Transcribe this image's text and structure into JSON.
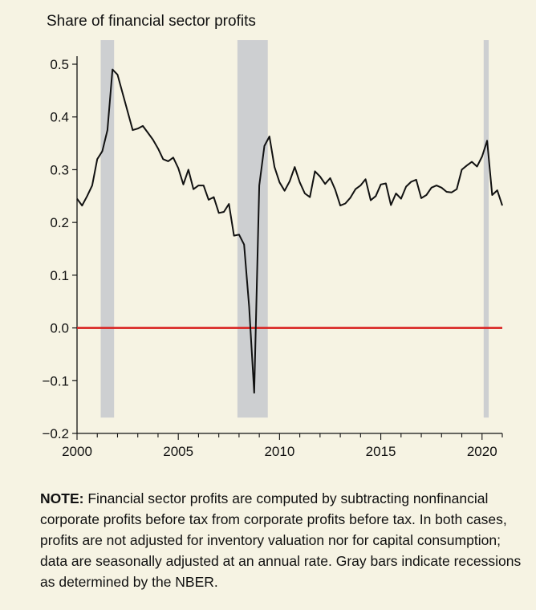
{
  "chart_data": {
    "type": "line",
    "title": "Share of financial sector profits",
    "xlabel": "",
    "ylabel": "",
    "xlim": [
      2000,
      2021
    ],
    "ylim": [
      -0.2,
      0.5
    ],
    "x_ticks": [
      2000,
      2005,
      2010,
      2015,
      2020
    ],
    "y_ticks": [
      -0.2,
      -0.1,
      0.0,
      0.1,
      0.2,
      0.3,
      0.4,
      0.5
    ],
    "y_tick_labels": [
      "−0.2",
      "−0.1",
      "0.0",
      "0.1",
      "0.2",
      "0.3",
      "0.4",
      "0.5"
    ],
    "zero_line": {
      "value": 0.0,
      "color": "#d9201e"
    },
    "recessions": [
      {
        "start": 2001.17,
        "end": 2001.83
      },
      {
        "start": 2007.92,
        "end": 2009.42
      },
      {
        "start": 2020.08,
        "end": 2020.33
      }
    ],
    "recession_color": "#cdcfd1",
    "line_color": "#111111",
    "series": [
      {
        "x": [
          2000.0,
          2000.25,
          2000.5,
          2000.75,
          2001.0,
          2001.25,
          2001.5,
          2001.75,
          2002.0,
          2002.25,
          2002.5,
          2002.75,
          2003.0,
          2003.25,
          2003.5,
          2003.75,
          2004.0,
          2004.25,
          2004.5,
          2004.75,
          2005.0,
          2005.25,
          2005.5,
          2005.75,
          2006.0,
          2006.25,
          2006.5,
          2006.75,
          2007.0,
          2007.25,
          2007.5,
          2007.75,
          2008.0,
          2008.25,
          2008.5,
          2008.75,
          2009.0,
          2009.25,
          2009.5,
          2009.75,
          2010.0,
          2010.25,
          2010.5,
          2010.75,
          2011.0,
          2011.25,
          2011.5,
          2011.75,
          2012.0,
          2012.25,
          2012.5,
          2012.75,
          2013.0,
          2013.25,
          2013.5,
          2013.75,
          2014.0,
          2014.25,
          2014.5,
          2014.75,
          2015.0,
          2015.25,
          2015.5,
          2015.75,
          2016.0,
          2016.25,
          2016.5,
          2016.75,
          2017.0,
          2017.25,
          2017.5,
          2017.75,
          2018.0,
          2018.25,
          2018.5,
          2018.75,
          2019.0,
          2019.25,
          2019.5,
          2019.75,
          2020.0,
          2020.25,
          2020.5,
          2020.75,
          2021.0
        ],
        "values": [
          0.245,
          0.232,
          0.25,
          0.27,
          0.32,
          0.335,
          0.375,
          0.49,
          0.48,
          0.445,
          0.41,
          0.375,
          0.378,
          0.383,
          0.37,
          0.357,
          0.34,
          0.32,
          0.316,
          0.323,
          0.303,
          0.272,
          0.3,
          0.263,
          0.27,
          0.27,
          0.243,
          0.248,
          0.218,
          0.22,
          0.235,
          0.175,
          0.177,
          0.158,
          0.04,
          -0.123,
          0.27,
          0.345,
          0.363,
          0.305,
          0.276,
          0.26,
          0.278,
          0.305,
          0.276,
          0.255,
          0.248,
          0.297,
          0.287,
          0.273,
          0.284,
          0.262,
          0.232,
          0.236,
          0.247,
          0.263,
          0.27,
          0.282,
          0.242,
          0.25,
          0.272,
          0.274,
          0.233,
          0.255,
          0.245,
          0.268,
          0.277,
          0.281,
          0.246,
          0.252,
          0.266,
          0.27,
          0.266,
          0.258,
          0.257,
          0.263,
          0.3,
          0.308,
          0.315,
          0.306,
          0.325,
          0.355,
          0.252,
          0.261,
          0.232
        ]
      }
    ]
  },
  "note": {
    "lead": "NOTE:",
    "text": " Financial sector profits are computed by subtracting nonfinan­cial corporate profits before tax from corporate profits before tax. In both cases, profits are not adjusted for inventory valuation nor for capital consumption; data are seasonally adjusted at an annual rate. Gray bars indicate recessions as determined by the NBER."
  }
}
